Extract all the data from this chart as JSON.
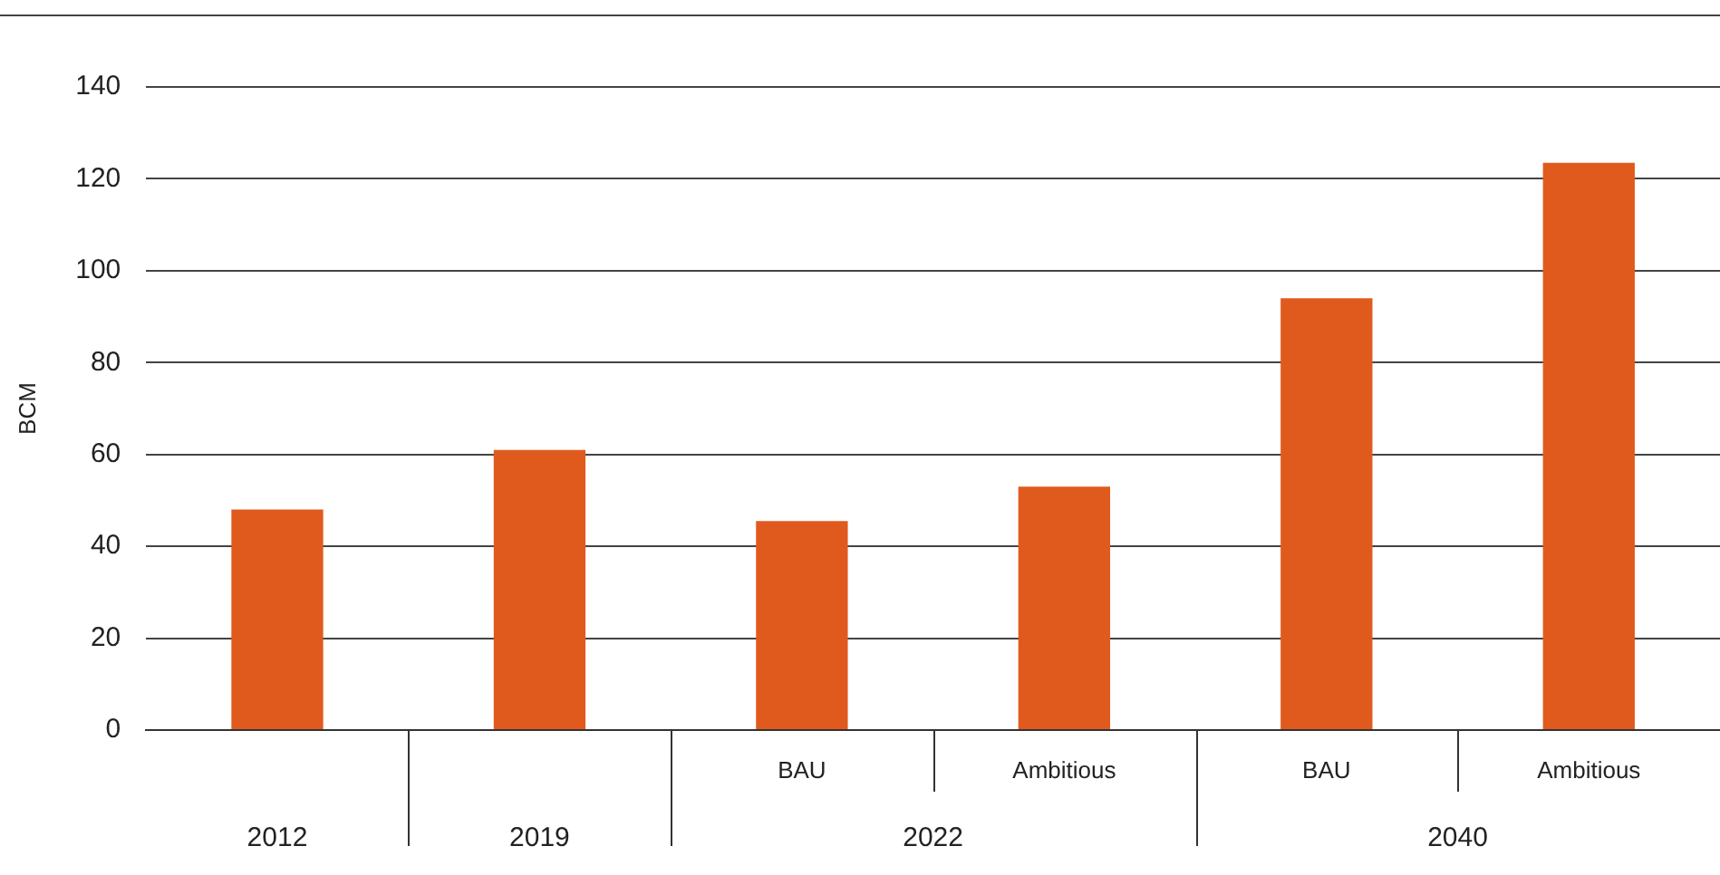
{
  "chart_data": {
    "type": "bar",
    "ylabel": "BCM",
    "categories": [
      null,
      null,
      "BAU",
      "Ambitious",
      "BAU",
      "Ambitious"
    ],
    "values": [
      48,
      61,
      45.5,
      53,
      94,
      123.5
    ],
    "color": "#e05a1e",
    "ylim": [
      0,
      140
    ],
    "yticks": [
      0,
      20,
      40,
      60,
      80,
      100,
      120,
      140
    ],
    "grid": "y",
    "legend": false,
    "annotations": [
      "2012",
      "2019",
      "2022",
      "2040"
    ]
  }
}
